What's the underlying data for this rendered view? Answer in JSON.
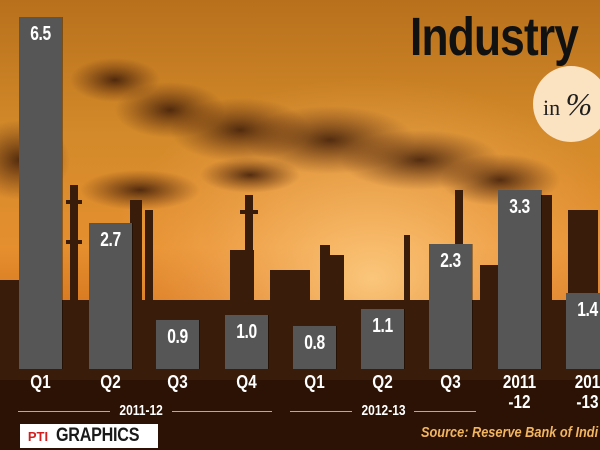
{
  "chart_data": {
    "type": "bar",
    "title": "Industry",
    "unit_prefix": "in",
    "unit_symbol": "%",
    "categories": [
      "Q1",
      "Q2",
      "Q3",
      "Q4",
      "Q1",
      "Q2",
      "Q3",
      "2011\n-12",
      "201\n-13"
    ],
    "values": [
      6.5,
      2.7,
      0.9,
      1.0,
      0.8,
      1.1,
      2.3,
      3.3,
      1.4
    ],
    "value_labels": [
      "6.5",
      "2.7",
      "0.9",
      "1.0",
      "0.8",
      "1.1",
      "2.3",
      "3.3",
      "1.4"
    ],
    "groups": [
      {
        "label": "2011-12"
      },
      {
        "label": "2012-13"
      }
    ],
    "bar_color": "#565656",
    "grid": false,
    "legend": "none"
  },
  "footer": {
    "logo_mark": "PTI",
    "logo_text": "GRAPHICS",
    "source": "Source: Reserve Bank of Indi"
  }
}
